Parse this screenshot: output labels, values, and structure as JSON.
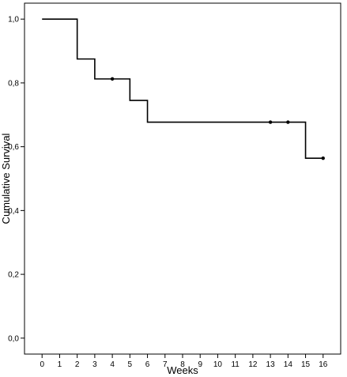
{
  "chart_data": {
    "type": "line",
    "subtype": "kaplan-meier-step",
    "xlabel": "Weeks",
    "ylabel": "Cumulative Survival",
    "xlim": [
      -1,
      17
    ],
    "ylim": [
      -0.05,
      1.05
    ],
    "x_ticks": [
      "0",
      "1",
      "2",
      "3",
      "4",
      "5",
      "6",
      "7",
      "8",
      "9",
      "10",
      "11",
      "12",
      "13",
      "14",
      "15",
      "16"
    ],
    "y_ticks": [
      "0,0",
      "0,2",
      "0,4",
      "0,6",
      "0,8",
      "1,0"
    ],
    "grid": false,
    "series": [
      {
        "step_points": [
          {
            "x": 0,
            "y": 1.0
          },
          {
            "x": 2,
            "y": 0.875
          },
          {
            "x": 3,
            "y": 0.8125
          },
          {
            "x": 5,
            "y": 0.745
          },
          {
            "x": 6,
            "y": 0.677
          },
          {
            "x": 15,
            "y": 0.564
          },
          {
            "x": 16,
            "y": 0.564
          }
        ],
        "censored": [
          {
            "x": 4,
            "y": 0.8125
          },
          {
            "x": 13,
            "y": 0.677
          },
          {
            "x": 14,
            "y": 0.677
          },
          {
            "x": 16,
            "y": 0.564
          }
        ]
      }
    ]
  }
}
